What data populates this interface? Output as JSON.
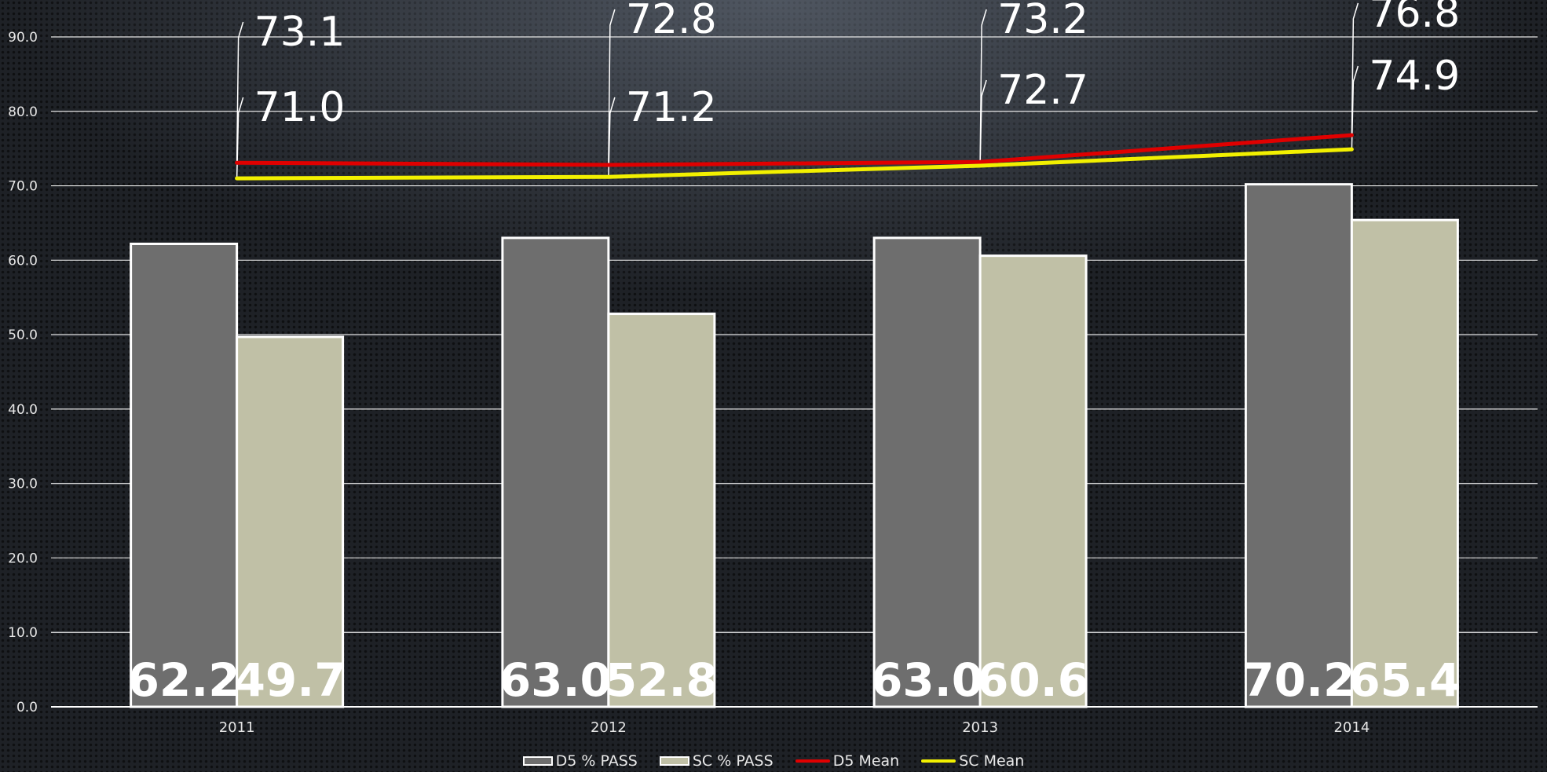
{
  "chart_data": {
    "type": "bar",
    "categories": [
      "2011",
      "2012",
      "2013",
      "2014"
    ],
    "ylim": [
      0,
      90
    ],
    "yticks": [
      "0.0",
      "10.0",
      "20.0",
      "30.0",
      "40.0",
      "50.0",
      "60.0",
      "70.0",
      "80.0",
      "90.0"
    ],
    "grid": true,
    "legend_position": "bottom",
    "series": [
      {
        "name": "D5 % PASS",
        "kind": "bar",
        "color": "#6e6e6e",
        "values": [
          62.2,
          63.0,
          63.0,
          70.2
        ],
        "labels": [
          "62.2",
          "63.0",
          "63.0",
          "70.2"
        ]
      },
      {
        "name": "SC % PASS",
        "kind": "bar",
        "color": "#c0c0a6",
        "values": [
          49.7,
          52.8,
          60.6,
          65.4
        ],
        "labels": [
          "49.7",
          "52.8",
          "60.6",
          "65.4"
        ]
      },
      {
        "name": "D5 Mean",
        "kind": "line",
        "color": "#e00000",
        "values": [
          73.1,
          72.8,
          73.2,
          76.8
        ],
        "labels": [
          "73.1",
          "72.8",
          "73.2",
          "76.8"
        ]
      },
      {
        "name": "SC Mean",
        "kind": "line",
        "color": "#f2f000",
        "values": [
          71.0,
          71.2,
          72.7,
          74.9
        ],
        "labels": [
          "71.0",
          "71.2",
          "72.7",
          "74.9"
        ]
      }
    ]
  }
}
